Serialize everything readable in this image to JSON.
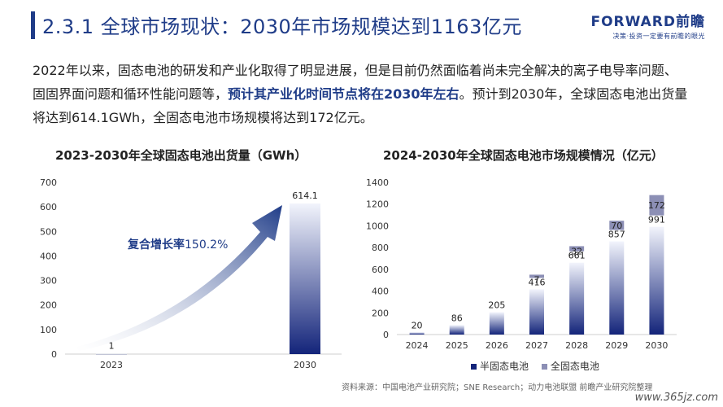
{
  "header": {
    "title": "2.3.1 全球市场现状：2030年市场规模达到1163亿元",
    "logo_main": "FORWARD前瞻",
    "logo_sub": "决策·投资一定要有前瞻的眼光"
  },
  "paragraph": {
    "part1": "2022年以来，固态电池的研发和产业化取得了明显进展，但是目前仍然面临着尚未完全解决的离子电导率问题、固固界面问题和循环性能问题等，",
    "highlight": "预计其产业化时间节点将在2030年左右",
    "part2": "。预计到2030年，全球固态电池出货量将达到614.1GWh，全固态电池市场规模将达到172亿元。"
  },
  "annotation": {
    "cagr_label": "复合增长率",
    "cagr_value": "150.2%"
  },
  "source": "资料来源：中国电池产业研究院；SNE Research；动力电池联盟 前瞻产业研究院整理",
  "watermark": "www.365jz.com",
  "colors": {
    "primary": "#1f3c88",
    "bar_top": "#eef1fb",
    "bar_bottom": "#13247a",
    "solid_state": "#8c8fb5"
  },
  "chart_data": [
    {
      "type": "bar",
      "title": "2023-2030年全球固态电池出货量（GWh）",
      "categories": [
        "2023",
        "2030"
      ],
      "values": [
        1,
        614.1
      ],
      "value_labels": [
        "1",
        "614.1"
      ],
      "ylim": [
        0,
        700
      ],
      "yticks": [
        "0",
        "100",
        "200",
        "300",
        "400",
        "500",
        "600",
        "700"
      ],
      "grid": false
    },
    {
      "type": "bar",
      "title": "2024-2030年全球固态电池市场规模情况（亿元）",
      "categories": [
        "2024",
        "2025",
        "2026",
        "2027",
        "2028",
        "2029",
        "2030"
      ],
      "stacked": true,
      "series": [
        {
          "name": "半固态电池",
          "values": [
            20,
            86,
            205,
            416,
            661,
            857,
            991
          ],
          "labels": [
            "20",
            "86",
            "205",
            "416",
            "661",
            "857",
            "991"
          ]
        },
        {
          "name": "全固态电池",
          "values": [
            0,
            0,
            0,
            7,
            32,
            70,
            172
          ],
          "labels": [
            "",
            "",
            "",
            "7",
            "32",
            "70",
            "172"
          ]
        }
      ],
      "ylim": [
        0,
        1400
      ],
      "yticks": [
        "0",
        "200",
        "400",
        "600",
        "800",
        "1000",
        "1200",
        "1400"
      ],
      "legend_position": "bottom",
      "grid": false
    }
  ]
}
